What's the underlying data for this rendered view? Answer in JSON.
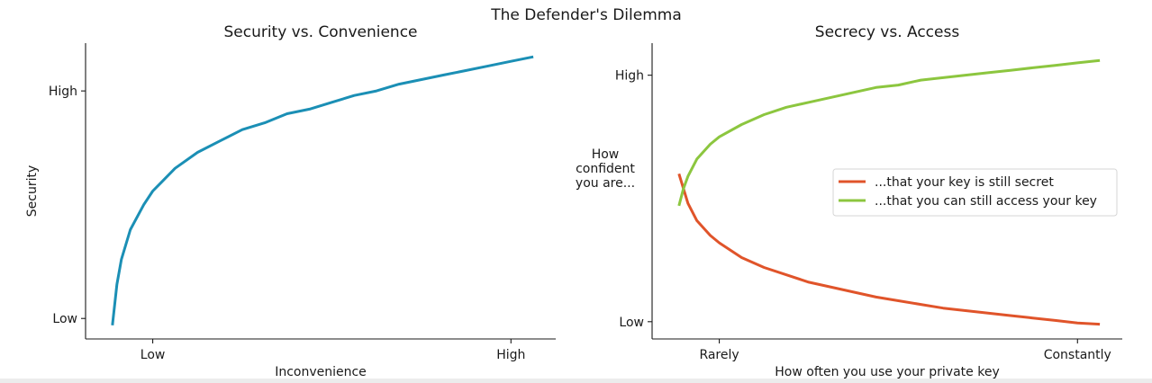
{
  "suptitle": "The Defender's Dilemma",
  "chart_data": [
    {
      "type": "line",
      "title": "Security vs. Convenience",
      "xlabel": "Inconvenience",
      "ylabel": "Security",
      "xticks": [
        {
          "value": 0.1,
          "label": "Low"
        },
        {
          "value": 0.9,
          "label": "High"
        }
      ],
      "yticks": [
        {
          "value": 0.0,
          "label": "Low"
        },
        {
          "value": 1.0,
          "label": "High"
        }
      ],
      "xlim": [
        -0.05,
        1.0
      ],
      "ylim": [
        -0.09,
        1.21
      ],
      "grid": false,
      "series": [
        {
          "color": "#1b8fb5",
          "x": [
            0.01,
            0.02,
            0.03,
            0.05,
            0.08,
            0.1,
            0.12,
            0.15,
            0.2,
            0.25,
            0.3,
            0.35,
            0.4,
            0.45,
            0.5,
            0.55,
            0.6,
            0.65,
            0.7,
            0.75,
            0.8,
            0.85,
            0.9,
            0.95
          ],
          "y": [
            -0.03,
            0.15,
            0.26,
            0.39,
            0.5,
            0.56,
            0.6,
            0.66,
            0.73,
            0.78,
            0.83,
            0.86,
            0.9,
            0.92,
            0.95,
            0.98,
            1.0,
            1.03,
            1.05,
            1.07,
            1.09,
            1.11,
            1.13,
            1.15
          ]
        }
      ]
    },
    {
      "type": "line",
      "title": "Secrecy vs. Access",
      "xlabel": "How often you use your private key",
      "ylabel": "How\nconfident\nyou are...",
      "xticks": [
        {
          "value": 0.1,
          "label": "Rarely"
        },
        {
          "value": 0.9,
          "label": "Constantly"
        }
      ],
      "yticks": [
        {
          "value": 0.0,
          "label": "Low"
        },
        {
          "value": 1.0,
          "label": "High"
        }
      ],
      "xlim": [
        -0.05,
        1.0
      ],
      "ylim": [
        -0.07,
        1.13
      ],
      "grid": false,
      "legend": {
        "position": "center-right"
      },
      "series": [
        {
          "name": "...that your key is still secret",
          "color": "#e0542a",
          "x": [
            0.01,
            0.02,
            0.03,
            0.05,
            0.08,
            0.1,
            0.15,
            0.2,
            0.25,
            0.3,
            0.35,
            0.4,
            0.45,
            0.5,
            0.55,
            0.6,
            0.65,
            0.7,
            0.75,
            0.8,
            0.85,
            0.9,
            0.95
          ],
          "y": [
            0.6,
            0.54,
            0.48,
            0.41,
            0.35,
            0.32,
            0.26,
            0.22,
            0.19,
            0.16,
            0.14,
            0.12,
            0.1,
            0.085,
            0.07,
            0.055,
            0.045,
            0.035,
            0.025,
            0.015,
            0.005,
            -0.005,
            -0.01
          ]
        },
        {
          "name": "...that you can still access your key",
          "color": "#8cc63f",
          "x": [
            0.01,
            0.02,
            0.03,
            0.05,
            0.08,
            0.1,
            0.15,
            0.2,
            0.25,
            0.3,
            0.35,
            0.4,
            0.45,
            0.5,
            0.55,
            0.6,
            0.65,
            0.7,
            0.75,
            0.8,
            0.85,
            0.9,
            0.95
          ],
          "y": [
            0.47,
            0.54,
            0.59,
            0.66,
            0.72,
            0.75,
            0.8,
            0.84,
            0.87,
            0.89,
            0.91,
            0.93,
            0.95,
            0.96,
            0.98,
            0.99,
            1.0,
            1.01,
            1.02,
            1.03,
            1.04,
            1.05,
            1.06
          ]
        }
      ]
    }
  ]
}
